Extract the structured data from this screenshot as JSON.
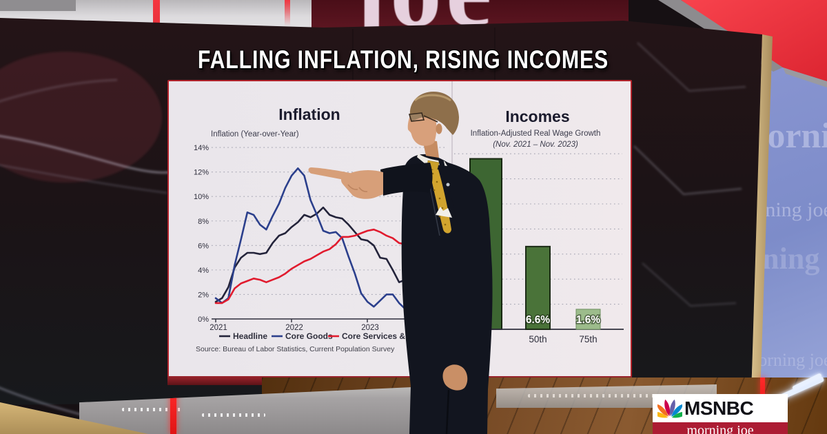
{
  "broadcast": {
    "headline": "FALLING INFLATION, RISING INCOMES",
    "set_top_logo_partial": "joe",
    "wall_watermark": "morning joe"
  },
  "bug": {
    "network": "MSNBC",
    "show": "morning joe"
  },
  "chart_data": [
    {
      "type": "line",
      "title": "Inflation",
      "subtitle": "Inflation (Year-over-Year)",
      "source": "Source: Bureau of Labor Statistics, Current Population Survey",
      "x_interval": "monthly",
      "x_start": "2021-01",
      "x_end": "2023-11",
      "x_tick_labels": [
        "2021",
        "2022",
        "2023"
      ],
      "ylim": [
        0,
        14
      ],
      "y_tick_labels": [
        "0%",
        "2%",
        "4%",
        "6%",
        "8%",
        "10%",
        "12%",
        "14%"
      ],
      "grid": "dotted-horizontal",
      "legend_position": "bottom",
      "series": [
        {
          "name": "Headline",
          "color": "#23233a",
          "values": [
            1.4,
            1.7,
            2.6,
            4.2,
            5.0,
            5.4,
            5.4,
            5.3,
            5.4,
            6.2,
            6.8,
            7.0,
            7.5,
            7.9,
            8.5,
            8.3,
            8.6,
            9.1,
            8.5,
            8.3,
            8.2,
            7.7,
            7.1,
            6.5,
            6.4,
            6.0,
            5.0,
            4.9,
            4.0,
            3.0,
            3.2,
            3.7,
            3.7,
            3.2,
            3.1
          ]
        },
        {
          "name": "Core Goods",
          "color": "#2b3f8c",
          "values": [
            1.7,
            1.3,
            1.7,
            4.4,
            6.5,
            8.7,
            8.5,
            7.7,
            7.3,
            8.4,
            9.4,
            10.7,
            11.7,
            12.3,
            11.7,
            9.7,
            8.5,
            7.2,
            7.0,
            7.1,
            6.6,
            5.1,
            3.7,
            2.1,
            1.4,
            1.0,
            1.5,
            2.0,
            2.0,
            1.3,
            0.8,
            0.2,
            0.0,
            0.1,
            0.0
          ]
        },
        {
          "name": "Core Services & Housing",
          "color": "#e11b2e",
          "values": [
            1.3,
            1.3,
            1.6,
            2.5,
            2.9,
            3.1,
            3.3,
            3.2,
            3.0,
            3.2,
            3.4,
            3.7,
            4.1,
            4.4,
            4.7,
            4.9,
            5.2,
            5.5,
            5.7,
            6.1,
            6.7,
            6.7,
            6.8,
            7.0,
            7.2,
            7.3,
            7.1,
            6.8,
            6.6,
            6.2,
            6.1,
            5.9,
            5.7,
            5.5,
            5.5
          ]
        }
      ]
    },
    {
      "type": "bar",
      "title": "Incomes",
      "subtitle": "Inflation-Adjusted Real Wage Growth",
      "subtitle2": "(Nov. 2021 – Nov. 2023)",
      "categories": [
        "50th",
        "75th"
      ],
      "values": [
        6.6,
        1.6
      ],
      "value_labels": [
        "6.6%",
        "1.6%"
      ],
      "bar_colors": [
        "#4a7339",
        "#9cbc8b"
      ],
      "grid": "dotted-horizontal",
      "occluded_bar": {
        "visible": true,
        "approx_percent_from_pixels": 13.6,
        "color": "#3d6632"
      }
    }
  ],
  "colors": {
    "board_border": "#b3232b",
    "headline_text": "#ffffff",
    "bug_red": "#ac1c33",
    "panel_red": "#f4323e",
    "wall_blue": "#8090cd",
    "axis_text": "#2e2e3c"
  }
}
